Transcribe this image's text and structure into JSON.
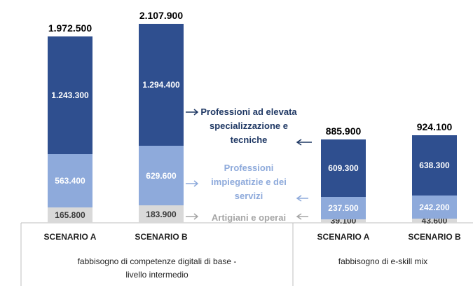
{
  "chart_data": {
    "type": "stacked_bar",
    "categories": [
      "SCENARIO A",
      "SCENARIO B",
      "SCENARIO A",
      "SCENARIO B"
    ],
    "groups": [
      {
        "label_lines": [
          "fabbisogno di competenze digitali di base -",
          "livello intermedio"
        ]
      },
      {
        "label_lines": [
          "fabbisogno di e-skill mix"
        ]
      }
    ],
    "series": [
      {
        "name": "Artigiani e operai",
        "color": "#d9d9d9",
        "label_color": "#3a3a3a",
        "legend_color": "#a6a6a6",
        "values": [
          165800,
          183900,
          39100,
          43600
        ],
        "value_labels": [
          "165.800",
          "183.900",
          "39.100",
          "43.600"
        ]
      },
      {
        "name": "Professioni impiegatizie e dei servizi",
        "color": "#8eaadb",
        "label_color": "#ffffff",
        "legend_color": "#8eaadb",
        "values": [
          563400,
          629600,
          237500,
          242200
        ],
        "value_labels": [
          "563.400",
          "629.600",
          "237.500",
          "242.200"
        ]
      },
      {
        "name": "Professioni ad elevata specializzazione e tecniche",
        "color": "#2f4f8f",
        "label_color": "#ffffff",
        "legend_color": "#1f3864",
        "values": [
          1243300,
          1294400,
          609300,
          638300
        ],
        "value_labels": [
          "1.243.300",
          "1.294.400",
          "609.300",
          "638.300"
        ]
      }
    ],
    "totals": {
      "values": [
        1972500,
        2107900,
        885900,
        924100
      ],
      "value_labels": [
        "1.972.500",
        "2.107.900",
        "885.900",
        "924.100"
      ]
    }
  }
}
